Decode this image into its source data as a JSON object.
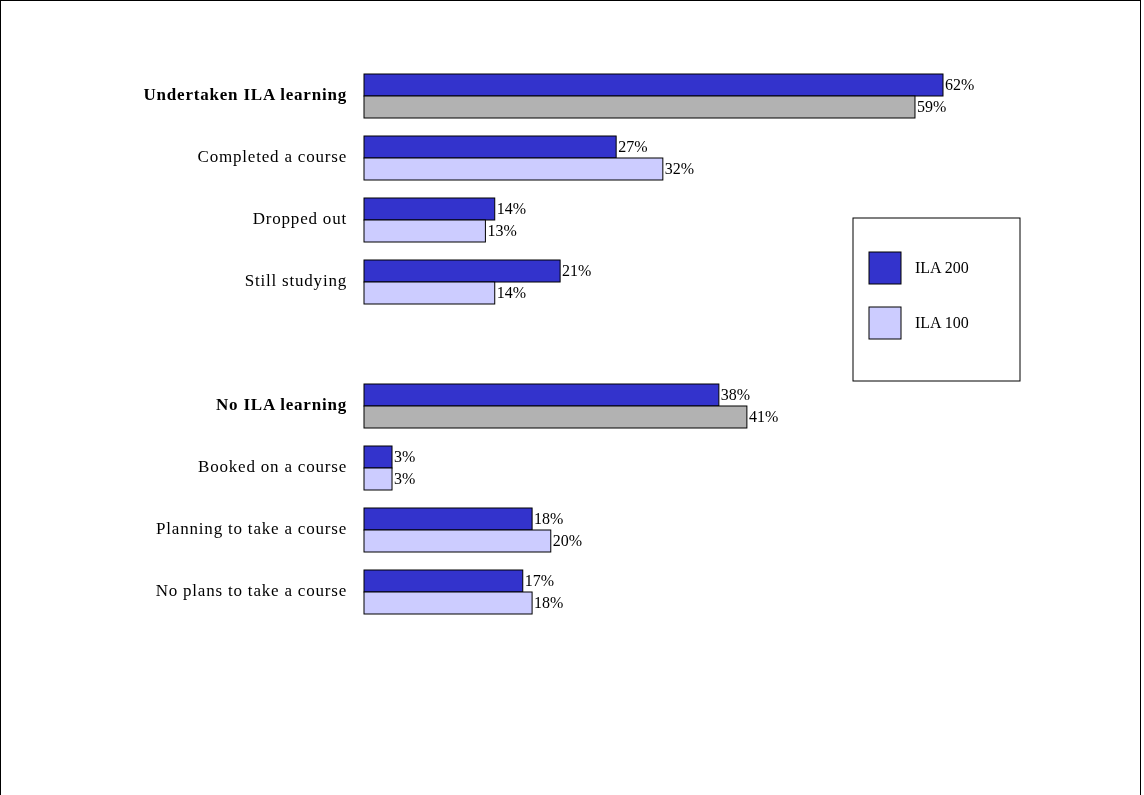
{
  "chart_data": {
    "type": "bar",
    "orientation": "horizontal",
    "categories": [
      "Undertaken ILA learning",
      "Completed a course",
      "Dropped out",
      "Still studying",
      null,
      "No ILA learning",
      "Booked on a course",
      "Planning to take a course",
      "No plans to take a course"
    ],
    "series": [
      {
        "name": "ILA 200",
        "color": "#3333cc",
        "colors": [
          "#3333cc",
          "#3333cc",
          "#3333cc",
          "#3333cc",
          null,
          "#3333cc",
          "#3333cc",
          "#3333cc",
          "#3333cc"
        ],
        "values": [
          62,
          27,
          14,
          21,
          null,
          38,
          3,
          18,
          17
        ],
        "value_labels": [
          "62%",
          "27%",
          "14%",
          "21%",
          null,
          "38%",
          "3%",
          "18%",
          "17%"
        ]
      },
      {
        "name": "ILA 100",
        "color": "#ccccff",
        "colors": [
          "#b2b2b2",
          "#ccccff",
          "#ccccff",
          "#ccccff",
          null,
          "#b2b2b2",
          "#ccccff",
          "#ccccff",
          "#ccccff"
        ],
        "values": [
          59,
          32,
          13,
          14,
          null,
          41,
          3,
          20,
          18
        ],
        "value_labels": [
          "59%",
          "32%",
          "13%",
          "14%",
          null,
          "41%",
          "3%",
          "20%",
          "18%"
        ]
      }
    ],
    "legend": "right"
  }
}
